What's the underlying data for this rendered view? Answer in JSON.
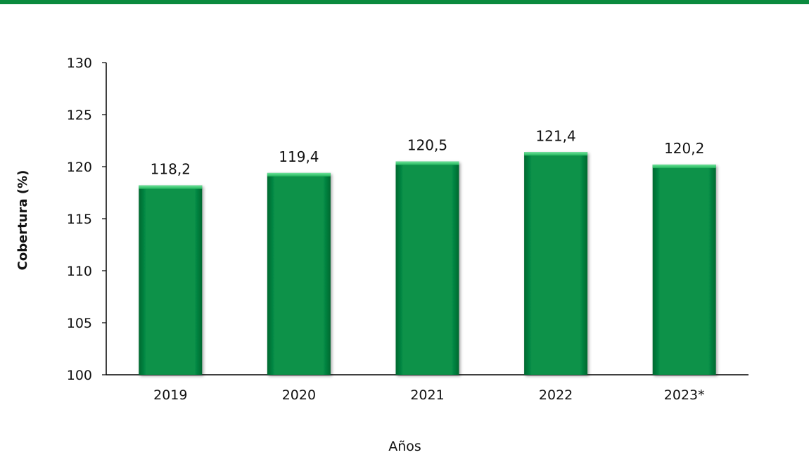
{
  "chart_data": {
    "type": "bar",
    "categories": [
      "2019",
      "2020",
      "2021",
      "2022",
      "2023*"
    ],
    "values": [
      118.2,
      119.4,
      120.5,
      121.4,
      120.2
    ],
    "value_labels": [
      "118,2",
      "119,4",
      "120,5",
      "121,4",
      "120,2"
    ],
    "title": "",
    "xlabel": "Años",
    "ylabel": "Cobertura (%)",
    "ylim": [
      100,
      130
    ],
    "yticks": [
      "100",
      "105",
      "110",
      "115",
      "120",
      "125",
      "130"
    ],
    "grid": false,
    "legend": "none",
    "colors": {
      "bar": "#07924a",
      "bar_dark": "#04682f",
      "bar_light": "#4bd27a",
      "top_rule": "#0b8a3e"
    }
  }
}
